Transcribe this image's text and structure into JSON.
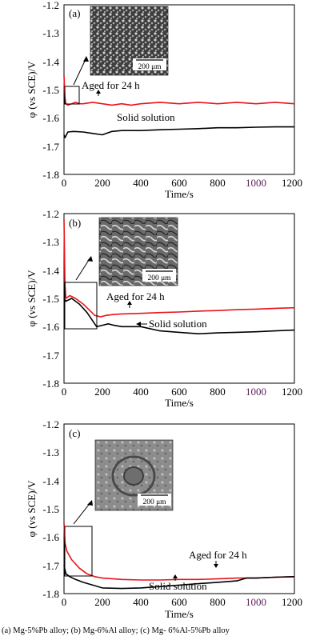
{
  "colors": {
    "aged": "#e8141c",
    "solid": "#000000",
    "axis": "#000000",
    "purple_tick": "#5a1e5a"
  },
  "caption": "(a) Mg-5%Pb alloy; (b) Mg-6%Al alloy; (c) Mg- 6%Al-5%Pb alloy",
  "chart_data": [
    {
      "type": "line",
      "panel_label": "(a)",
      "ylabel": "φ (vs SCE)/V",
      "xlabel": "Time/s",
      "xlim": [
        0,
        1200
      ],
      "ylim": [
        -1.8,
        -1.2
      ],
      "xticks": [
        "0",
        "200",
        "400",
        "600",
        "800",
        "1000",
        "1200"
      ],
      "yticks": [
        "-1.2",
        "-1.3",
        "-1.4",
        "-1.5",
        "-1.6",
        "-1.7",
        "-1.8"
      ],
      "inset_scale": "200 μm",
      "series": [
        {
          "name": "Aged for 24 h",
          "x": [
            0,
            5,
            10,
            20,
            40,
            60,
            80,
            100,
            150,
            200,
            250,
            300,
            350,
            400,
            500,
            600,
            700,
            800,
            900,
            1000,
            1100,
            1200
          ],
          "y": [
            -1.45,
            -1.53,
            -1.55,
            -1.555,
            -1.55,
            -1.545,
            -1.55,
            -1.55,
            -1.545,
            -1.55,
            -1.555,
            -1.55,
            -1.555,
            -1.55,
            -1.545,
            -1.55,
            -1.545,
            -1.55,
            -1.545,
            -1.55,
            -1.545,
            -1.55
          ]
        },
        {
          "name": "Solid solution",
          "x": [
            0,
            5,
            20,
            50,
            100,
            150,
            200,
            220,
            250,
            300,
            400,
            500,
            600,
            700,
            800,
            900,
            1000,
            1100,
            1200
          ],
          "y": [
            -1.66,
            -1.67,
            -1.65,
            -1.648,
            -1.65,
            -1.655,
            -1.66,
            -1.655,
            -1.648,
            -1.645,
            -1.645,
            -1.642,
            -1.64,
            -1.638,
            -1.635,
            -1.635,
            -1.633,
            -1.632,
            -1.632
          ]
        }
      ]
    },
    {
      "type": "line",
      "panel_label": "(b)",
      "ylabel": "φ (vs SCE)/V",
      "xlabel": "Time/s",
      "xlim": [
        0,
        1200
      ],
      "ylim": [
        -1.8,
        -1.2
      ],
      "xticks": [
        "0",
        "200",
        "400",
        "600",
        "800",
        "1000",
        "1200"
      ],
      "yticks": [
        "-1.2",
        "-1.3",
        "-1.4",
        "-1.5",
        "-1.6",
        "-1.7",
        "-1.8"
      ],
      "inset_scale": "200 μm",
      "series": [
        {
          "name": "Aged for 24 h",
          "x": [
            0,
            5,
            10,
            30,
            60,
            100,
            130,
            160,
            190,
            220,
            260,
            300,
            400,
            500,
            600,
            700,
            800,
            900,
            1000,
            1100,
            1200
          ],
          "y": [
            -1.22,
            -1.45,
            -1.5,
            -1.49,
            -1.5,
            -1.52,
            -1.54,
            -1.56,
            -1.565,
            -1.56,
            -1.557,
            -1.555,
            -1.553,
            -1.55,
            -1.548,
            -1.545,
            -1.543,
            -1.54,
            -1.538,
            -1.535,
            -1.533
          ]
        },
        {
          "name": "Solid solution",
          "x": [
            0,
            10,
            40,
            80,
            120,
            150,
            170,
            200,
            230,
            260,
            300,
            400,
            500,
            600,
            700,
            800,
            900,
            1000,
            1100,
            1200
          ],
          "y": [
            -1.5,
            -1.51,
            -1.5,
            -1.52,
            -1.55,
            -1.58,
            -1.6,
            -1.595,
            -1.59,
            -1.595,
            -1.6,
            -1.6,
            -1.615,
            -1.62,
            -1.625,
            -1.622,
            -1.62,
            -1.618,
            -1.615,
            -1.612
          ]
        }
      ]
    },
    {
      "type": "line",
      "panel_label": "(c)",
      "ylabel": "φ (vs SCE)/V",
      "xlabel": "Time/s",
      "xlim": [
        0,
        1200
      ],
      "ylim": [
        -1.8,
        -1.2
      ],
      "xticks": [
        "0",
        "200",
        "400",
        "600",
        "800",
        "1000",
        "1200"
      ],
      "yticks": [
        "-1.2",
        "-1.3",
        "-1.4",
        "-1.5",
        "-1.6",
        "-1.7",
        "-1.8"
      ],
      "inset_scale": "200 μm",
      "series": [
        {
          "name": "Aged for 24 h",
          "x": [
            0,
            5,
            15,
            40,
            80,
            120,
            160,
            200,
            300,
            400,
            500,
            600,
            700,
            800,
            900,
            1000,
            1100,
            1200
          ],
          "y": [
            -1.55,
            -1.62,
            -1.65,
            -1.68,
            -1.71,
            -1.73,
            -1.74,
            -1.745,
            -1.75,
            -1.752,
            -1.752,
            -1.75,
            -1.75,
            -1.748,
            -1.745,
            -1.745,
            -1.742,
            -1.74
          ]
        },
        {
          "name": "Solid solution",
          "x": [
            0,
            10,
            30,
            60,
            100,
            150,
            200,
            300,
            400,
            500,
            600,
            700,
            800,
            900,
            950,
            1000,
            1100,
            1200
          ],
          "y": [
            -1.7,
            -1.73,
            -1.74,
            -1.75,
            -1.76,
            -1.77,
            -1.78,
            -1.782,
            -1.78,
            -1.775,
            -1.77,
            -1.765,
            -1.76,
            -1.755,
            -1.745,
            -1.745,
            -1.742,
            -1.74
          ]
        }
      ]
    }
  ]
}
